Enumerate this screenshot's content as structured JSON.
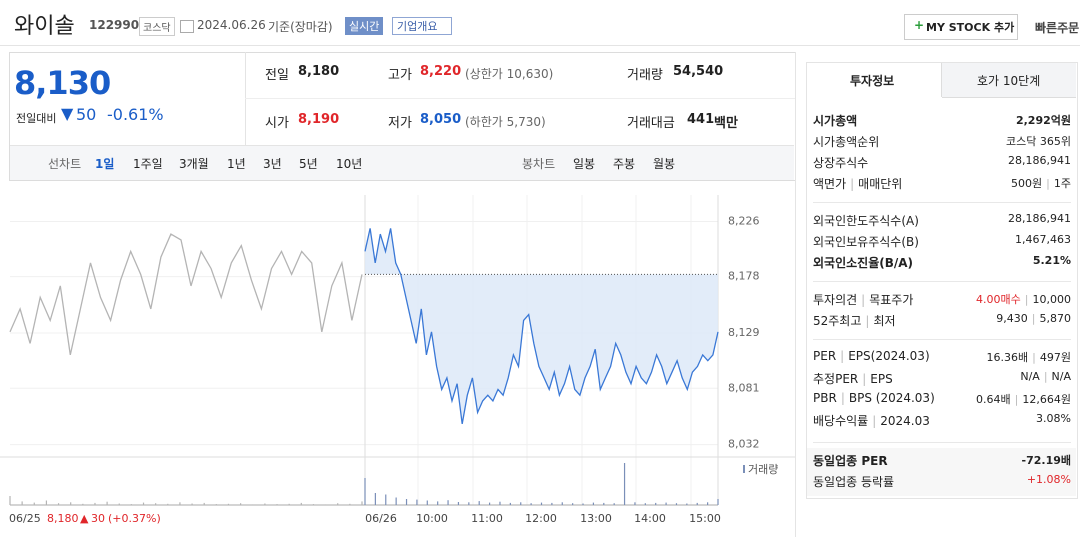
{
  "header": {
    "name": "와이솔",
    "code": "122990",
    "market": "코스닥",
    "date": "2024.06.26",
    "basis": "기준(장마감)",
    "realtime": "실시간",
    "company": "기업개요",
    "mystock": "MY STOCK 추가",
    "quick_order": "빠른주문"
  },
  "quote": {
    "price": "8,130",
    "change_label": "전일대비",
    "change": "50",
    "rate": "-0.61%",
    "items": [
      {
        "label": "전일",
        "value": "8,180"
      },
      {
        "label": "고가",
        "value": "8,220",
        "note": "(상한가 10,630)"
      },
      {
        "label": "거래량",
        "value": "54,540"
      },
      {
        "label": "시가",
        "value": "8,190"
      },
      {
        "label": "저가",
        "value": "8,050",
        "note": "(하한가 5,730)"
      },
      {
        "label": "거래대금",
        "value": "441",
        "unit": "백만"
      }
    ]
  },
  "periods": {
    "line_label": "선차트",
    "line": [
      "1일",
      "1주일",
      "3개월",
      "1년",
      "3년",
      "5년",
      "10년"
    ],
    "candle_label": "봉차트",
    "candle": [
      "일봉",
      "주봉",
      "월봉"
    ]
  },
  "chart_data": {
    "type": "line",
    "ylim": [
      8023,
      8249
    ],
    "yticks": [
      {
        "value": 8226,
        "label": "8,226"
      },
      {
        "value": 8178,
        "label": "8,178"
      },
      {
        "value": 8129,
        "label": "8,129"
      },
      {
        "value": 8081,
        "label": "8,081"
      },
      {
        "value": 8032,
        "label": "8,032"
      }
    ],
    "xticks": [
      "06/26",
      "10:00",
      "11:00",
      "12:00",
      "13:00",
      "14:00",
      "15:00"
    ],
    "reference_line": 8180,
    "volume_label": "거래량",
    "series": [
      {
        "name": "06/25",
        "color": "#b4b4b4",
        "values": [
          8130,
          8150,
          8120,
          8160,
          8140,
          8170,
          8110,
          8150,
          8190,
          8160,
          8140,
          8175,
          8200,
          8180,
          8150,
          8195,
          8215,
          8210,
          8170,
          8200,
          8185,
          8160,
          8190,
          8205,
          8175,
          8150,
          8185,
          8200,
          8180,
          8200,
          8190,
          8130,
          8170,
          8190,
          8140,
          8180
        ]
      },
      {
        "name": "06/26",
        "color": "#3a78d6",
        "values": [
          8200,
          8220,
          8190,
          8215,
          8200,
          8220,
          8190,
          8180,
          8160,
          8140,
          8120,
          8150,
          8110,
          8130,
          8100,
          8080,
          8090,
          8070,
          8085,
          8050,
          8075,
          8090,
          8060,
          8070,
          8075,
          8070,
          8080,
          8075,
          8090,
          8110,
          8100,
          8140,
          8145,
          8120,
          8100,
          8090,
          8080,
          8095,
          8075,
          8085,
          8100,
          8080,
          8075,
          8090,
          8100,
          8115,
          8080,
          8090,
          8100,
          8120,
          8110,
          8095,
          8085,
          8100,
          8090,
          8085,
          8095,
          8110,
          8100,
          8085,
          8095,
          8105,
          8090,
          8080,
          8095,
          8100,
          8110,
          8105,
          8110,
          8130
        ]
      }
    ],
    "volume": [
      {
        "name": "06/25",
        "color": "#b4b4b4",
        "values": [
          300,
          120,
          80,
          150,
          60,
          90,
          40,
          70,
          110,
          50,
          30,
          80,
          60,
          40,
          90,
          50,
          70,
          30,
          40,
          60,
          20,
          50,
          30,
          40,
          70,
          30,
          20,
          60,
          40,
          120
        ]
      },
      {
        "name": "06/26",
        "color": "#7a8fb8",
        "values": [
          900,
          400,
          350,
          250,
          200,
          180,
          150,
          120,
          160,
          100,
          90,
          130,
          80,
          110,
          70,
          90,
          60,
          80,
          70,
          90,
          60,
          50,
          80,
          70,
          60,
          1400,
          90,
          60,
          70,
          80,
          60,
          50,
          70,
          90,
          200
        ]
      }
    ],
    "prev_day": {
      "date": "06/25",
      "close": "8,180",
      "change": "30",
      "rate": "(+0.37%)"
    }
  },
  "invest": {
    "tabs": [
      "투자정보",
      "호가 10단계"
    ],
    "groups": [
      [
        {
          "label": [
            "시가총액"
          ],
          "value": [
            "2,292억원"
          ]
        },
        {
          "label": [
            "시가총액순위"
          ],
          "value": [
            "코스닥 365위"
          ]
        },
        {
          "label": [
            "상장주식수"
          ],
          "value": [
            "28,186,941"
          ]
        },
        {
          "label": [
            "액면가",
            "매매단위"
          ],
          "value": [
            "500원",
            "1주"
          ]
        }
      ],
      [
        {
          "label": [
            "외국인한도주식수(A)"
          ],
          "value": [
            "28,186,941"
          ]
        },
        {
          "label": [
            "외국인보유주식수(B)"
          ],
          "value": [
            "1,467,463"
          ]
        },
        {
          "label": [
            "외국인소진율(B/A)"
          ],
          "value": [
            "5.21%"
          ]
        }
      ],
      [
        {
          "label": [
            "투자의견",
            "목표주가"
          ],
          "value": [
            "4.00매수",
            "10,000"
          ]
        },
        {
          "label": [
            "52주최고",
            "최저"
          ],
          "value": [
            "9,430",
            "5,870"
          ]
        }
      ],
      [
        {
          "label": [
            "PER",
            "EPS(2024.03)"
          ],
          "value": [
            "16.36배",
            "497원"
          ]
        },
        {
          "label": [
            "추정PER",
            "EPS"
          ],
          "value": [
            "N/A",
            "N/A"
          ]
        },
        {
          "label": [
            "PBR",
            "BPS (2024.03)"
          ],
          "value": [
            "0.64배",
            "12,664원"
          ]
        },
        {
          "label": [
            "배당수익률",
            "2024.03"
          ],
          "value": [
            "3.08%"
          ]
        }
      ],
      [
        {
          "label": [
            "동일업종 PER"
          ],
          "value": [
            "-72.19배"
          ]
        },
        {
          "label": [
            "동일업종 등락률"
          ],
          "value": [
            "+1.08%"
          ]
        }
      ]
    ]
  }
}
